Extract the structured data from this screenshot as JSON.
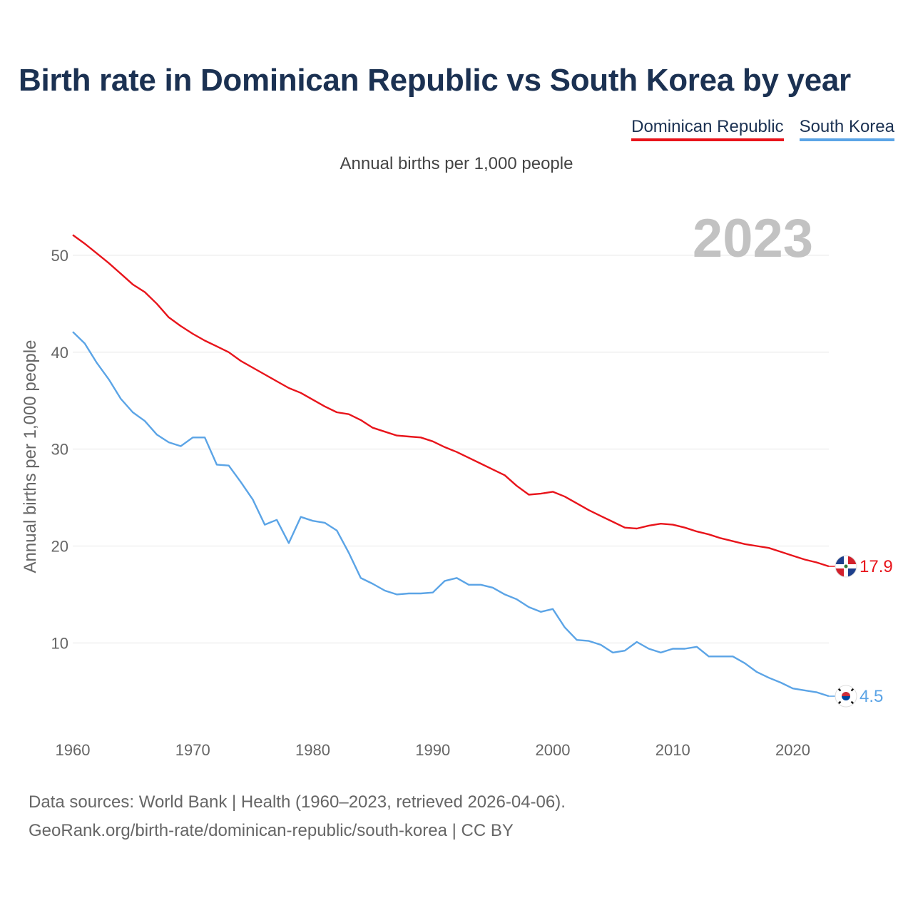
{
  "title": "Birth rate in Dominican Republic vs South Korea by year",
  "subtitle": "Annual births per 1,000 people",
  "year_display": "2023",
  "footer": {
    "line1": "Data sources: World Bank | Health (1960–2023, retrieved 2026-04-06).",
    "line2": "GeoRank.org/birth-rate/dominican-republic/south-korea | CC BY"
  },
  "chart_data": {
    "type": "line",
    "title": "Birth rate in Dominican Republic vs South Korea by year",
    "ylabel": "Annual births per 1,000 people",
    "xlabel": "",
    "xlim": [
      1960,
      2023
    ],
    "ylim": [
      2,
      55
    ],
    "yticks": [
      10,
      20,
      30,
      40,
      50
    ],
    "xticks": [
      1960,
      1970,
      1980,
      1990,
      2000,
      2010,
      2020
    ],
    "grid": true,
    "legend_position": "top-right",
    "x": [
      1960,
      1961,
      1962,
      1963,
      1964,
      1965,
      1966,
      1967,
      1968,
      1969,
      1970,
      1971,
      1972,
      1973,
      1974,
      1975,
      1976,
      1977,
      1978,
      1979,
      1980,
      1981,
      1982,
      1983,
      1984,
      1985,
      1986,
      1987,
      1988,
      1989,
      1990,
      1991,
      1992,
      1993,
      1994,
      1995,
      1996,
      1997,
      1998,
      1999,
      2000,
      2001,
      2002,
      2003,
      2004,
      2005,
      2006,
      2007,
      2008,
      2009,
      2010,
      2011,
      2012,
      2013,
      2014,
      2015,
      2016,
      2017,
      2018,
      2019,
      2020,
      2021,
      2022,
      2023
    ],
    "series": [
      {
        "name": "Dominican Republic",
        "color": "#e8141b",
        "end_label": "17.9",
        "flag": "DO",
        "values": [
          52.1,
          51.2,
          50.2,
          49.2,
          48.1,
          47.0,
          46.2,
          45.0,
          43.6,
          42.7,
          41.9,
          41.2,
          40.6,
          40.0,
          39.1,
          38.4,
          37.7,
          37.0,
          36.3,
          35.8,
          35.1,
          34.4,
          33.8,
          33.6,
          33.0,
          32.2,
          31.8,
          31.4,
          31.3,
          31.2,
          30.8,
          30.2,
          29.7,
          29.1,
          28.5,
          27.9,
          27.3,
          26.2,
          25.3,
          25.4,
          25.6,
          25.1,
          24.4,
          23.7,
          23.1,
          22.5,
          21.9,
          21.8,
          22.1,
          22.3,
          22.2,
          21.9,
          21.5,
          21.2,
          20.8,
          20.5,
          20.2,
          20.0,
          19.8,
          19.4,
          19.0,
          18.6,
          18.3,
          17.9
        ]
      },
      {
        "name": "South Korea",
        "color": "#5ba4e6",
        "end_label": "4.5",
        "flag": "KR",
        "values": [
          42.1,
          40.9,
          38.9,
          37.2,
          35.2,
          33.8,
          32.9,
          31.5,
          30.7,
          30.3,
          31.2,
          31.2,
          28.4,
          28.3,
          26.6,
          24.8,
          22.2,
          22.7,
          20.3,
          23.0,
          22.6,
          22.4,
          21.6,
          19.3,
          16.7,
          16.1,
          15.4,
          15.0,
          15.1,
          15.1,
          15.2,
          16.4,
          16.7,
          16.0,
          16.0,
          15.7,
          15.0,
          14.5,
          13.7,
          13.2,
          13.5,
          11.6,
          10.3,
          10.2,
          9.8,
          9.0,
          9.2,
          10.1,
          9.4,
          9.0,
          9.4,
          9.4,
          9.6,
          8.6,
          8.6,
          8.6,
          7.9,
          7.0,
          6.4,
          5.9,
          5.3,
          5.1,
          4.9,
          4.5
        ]
      }
    ]
  }
}
